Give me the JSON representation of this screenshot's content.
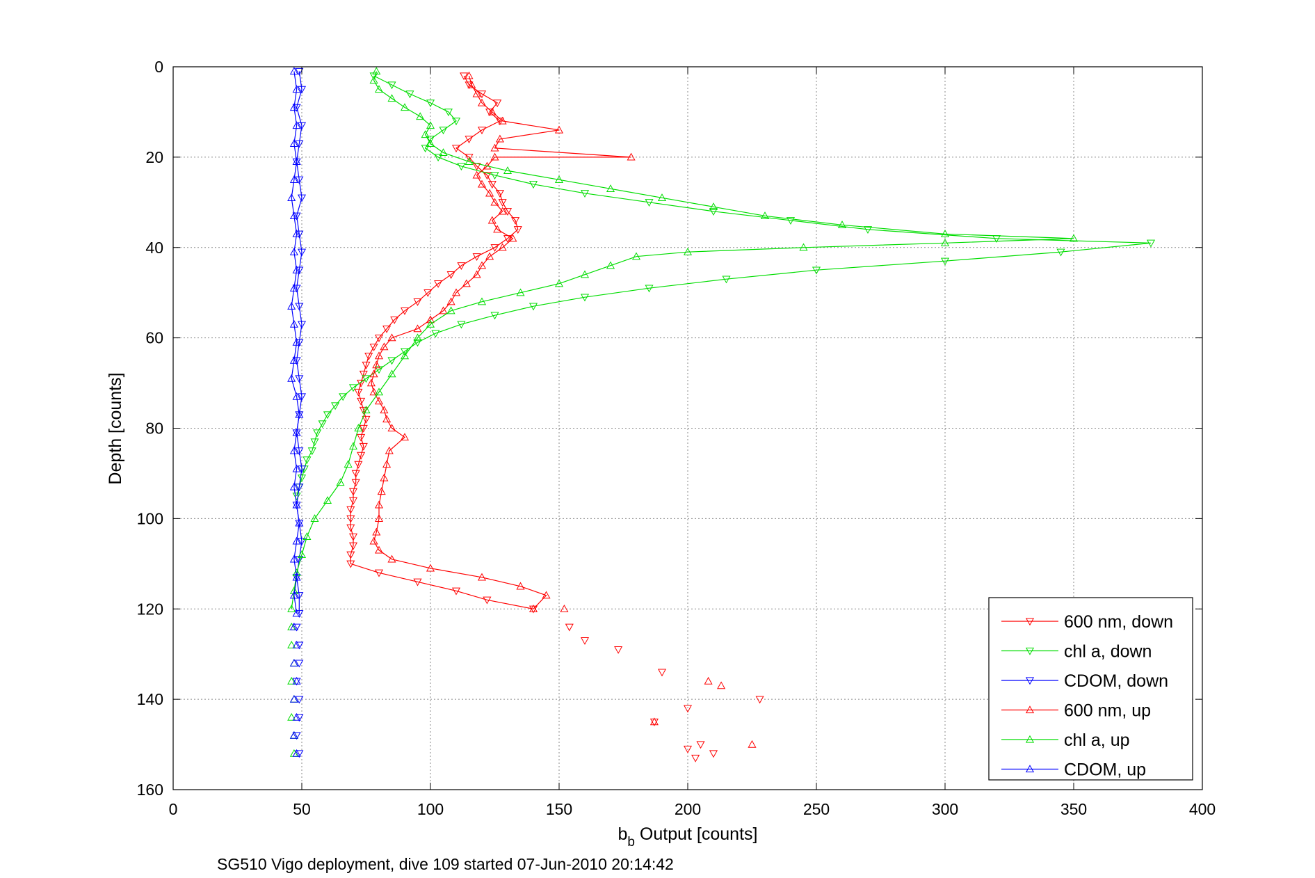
{
  "caption": "SG510 Vigo deployment, dive 109 started 07-Jun-2010 20:14:42",
  "chart_data": {
    "type": "line",
    "xlabel_main": "b",
    "xlabel_sub": "b",
    "xlabel_rest": " Output [counts]",
    "ylabel": "Depth [counts]",
    "xlim": [
      0,
      400
    ],
    "ylim": [
      0,
      160
    ],
    "y_reversed": true,
    "grid": true,
    "legend_position": "bottom-right",
    "xticks": [
      "0",
      "50",
      "100",
      "150",
      "200",
      "250",
      "300",
      "350",
      "400"
    ],
    "yticks": [
      "0",
      "20",
      "40",
      "60",
      "80",
      "100",
      "120",
      "140",
      "160"
    ],
    "series": [
      {
        "name": "600 nm, down",
        "color": "#ff0000",
        "marker": "triangle-down",
        "line": true,
        "points": [
          [
            113,
            2
          ],
          [
            115,
            4
          ],
          [
            120,
            6
          ],
          [
            126,
            8
          ],
          [
            123,
            10
          ],
          [
            127,
            12
          ],
          [
            120,
            14
          ],
          [
            115,
            16
          ],
          [
            110,
            18
          ],
          [
            115,
            20
          ],
          [
            118,
            22
          ],
          [
            122,
            24
          ],
          [
            124,
            26
          ],
          [
            127,
            28
          ],
          [
            128,
            30
          ],
          [
            130,
            32
          ],
          [
            133,
            34
          ],
          [
            134,
            36
          ],
          [
            130,
            38
          ],
          [
            125,
            40
          ],
          [
            118,
            42
          ],
          [
            112,
            44
          ],
          [
            108,
            46
          ],
          [
            103,
            48
          ],
          [
            99,
            50
          ],
          [
            95,
            52
          ],
          [
            90,
            54
          ],
          [
            86,
            56
          ],
          [
            83,
            58
          ],
          [
            80,
            60
          ],
          [
            78,
            62
          ],
          [
            76,
            64
          ],
          [
            75,
            66
          ],
          [
            74,
            68
          ],
          [
            73,
            70
          ],
          [
            72,
            72
          ],
          [
            73,
            74
          ],
          [
            74,
            76
          ],
          [
            75,
            78
          ],
          [
            74,
            80
          ],
          [
            73,
            82
          ],
          [
            74,
            84
          ],
          [
            73,
            86
          ],
          [
            72,
            88
          ],
          [
            71,
            90
          ],
          [
            71,
            92
          ],
          [
            70,
            94
          ],
          [
            70,
            96
          ],
          [
            69,
            98
          ],
          [
            69,
            100
          ],
          [
            69,
            102
          ],
          [
            70,
            104
          ],
          [
            70,
            106
          ],
          [
            69,
            108
          ],
          [
            69,
            110
          ],
          [
            80,
            112
          ],
          [
            95,
            114
          ],
          [
            110,
            116
          ],
          [
            122,
            118
          ],
          [
            140,
            120
          ]
        ],
        "scatter": [
          [
            154,
            124
          ],
          [
            160,
            127
          ],
          [
            173,
            129
          ],
          [
            190,
            134
          ],
          [
            228,
            140
          ],
          [
            200,
            142
          ],
          [
            187,
            145
          ],
          [
            205,
            150
          ],
          [
            200,
            151
          ],
          [
            210,
            152
          ],
          [
            203,
            153
          ]
        ]
      },
      {
        "name": "chl a, down",
        "color": "#00dd00",
        "marker": "triangle-down",
        "line": true,
        "points": [
          [
            78,
            2
          ],
          [
            85,
            4
          ],
          [
            92,
            6
          ],
          [
            100,
            8
          ],
          [
            107,
            10
          ],
          [
            110,
            12
          ],
          [
            105,
            14
          ],
          [
            100,
            16
          ],
          [
            98,
            18
          ],
          [
            103,
            20
          ],
          [
            112,
            22
          ],
          [
            125,
            24
          ],
          [
            140,
            26
          ],
          [
            160,
            28
          ],
          [
            185,
            30
          ],
          [
            210,
            32
          ],
          [
            240,
            34
          ],
          [
            270,
            36
          ],
          [
            320,
            38
          ],
          [
            380,
            39
          ],
          [
            345,
            41
          ],
          [
            300,
            43
          ],
          [
            250,
            45
          ],
          [
            215,
            47
          ],
          [
            185,
            49
          ],
          [
            160,
            51
          ],
          [
            140,
            53
          ],
          [
            125,
            55
          ],
          [
            112,
            57
          ],
          [
            102,
            59
          ],
          [
            95,
            61
          ],
          [
            90,
            63
          ],
          [
            85,
            65
          ],
          [
            80,
            67
          ],
          [
            75,
            69
          ],
          [
            70,
            71
          ],
          [
            66,
            73
          ],
          [
            63,
            75
          ],
          [
            60,
            77
          ],
          [
            58,
            79
          ],
          [
            56,
            81
          ],
          [
            55,
            83
          ],
          [
            54,
            85
          ],
          [
            52,
            87
          ],
          [
            51,
            89
          ],
          [
            50,
            91
          ],
          [
            49,
            93
          ],
          [
            48,
            95
          ]
        ],
        "scatter": []
      },
      {
        "name": "CDOM, down",
        "color": "#0000ff",
        "marker": "triangle-down",
        "line": true,
        "points": [
          [
            49,
            1
          ],
          [
            50,
            5
          ],
          [
            48,
            9
          ],
          [
            50,
            13
          ],
          [
            49,
            17
          ],
          [
            48,
            21
          ],
          [
            49,
            25
          ],
          [
            50,
            29
          ],
          [
            48,
            33
          ],
          [
            49,
            37
          ],
          [
            50,
            41
          ],
          [
            49,
            45
          ],
          [
            48,
            49
          ],
          [
            49,
            53
          ],
          [
            50,
            57
          ],
          [
            49,
            61
          ],
          [
            48,
            65
          ],
          [
            49,
            69
          ],
          [
            50,
            73
          ],
          [
            49,
            77
          ],
          [
            48,
            81
          ],
          [
            49,
            85
          ],
          [
            50,
            89
          ],
          [
            49,
            93
          ],
          [
            48,
            97
          ],
          [
            49,
            101
          ],
          [
            50,
            105
          ],
          [
            49,
            109
          ],
          [
            48,
            113
          ],
          [
            49,
            117
          ],
          [
            49,
            121
          ]
        ],
        "scatter": [
          [
            48,
            124
          ],
          [
            49,
            128
          ],
          [
            49,
            132
          ],
          [
            48,
            136
          ],
          [
            49,
            140
          ],
          [
            49,
            144
          ],
          [
            48,
            148
          ],
          [
            49,
            152
          ]
        ]
      },
      {
        "name": "600 nm, up",
        "color": "#ff0000",
        "marker": "triangle-up",
        "line": true,
        "points": [
          [
            140,
            120
          ],
          [
            145,
            117
          ],
          [
            135,
            115
          ],
          [
            120,
            113
          ],
          [
            100,
            111
          ],
          [
            85,
            109
          ],
          [
            80,
            107
          ],
          [
            78,
            105
          ],
          [
            79,
            103
          ],
          [
            80,
            100
          ],
          [
            80,
            97
          ],
          [
            81,
            94
          ],
          [
            82,
            91
          ],
          [
            83,
            88
          ],
          [
            84,
            85
          ],
          [
            90,
            82
          ],
          [
            85,
            80
          ],
          [
            83,
            78
          ],
          [
            82,
            76
          ],
          [
            80,
            74
          ],
          [
            78,
            72
          ],
          [
            77,
            70
          ],
          [
            78,
            68
          ],
          [
            79,
            66
          ],
          [
            80,
            64
          ],
          [
            82,
            62
          ],
          [
            85,
            60
          ],
          [
            95,
            58
          ],
          [
            100,
            56
          ],
          [
            105,
            54
          ],
          [
            108,
            52
          ],
          [
            110,
            50
          ],
          [
            114,
            48
          ],
          [
            118,
            46
          ],
          [
            120,
            44
          ],
          [
            123,
            42
          ],
          [
            128,
            40
          ],
          [
            132,
            38
          ],
          [
            126,
            36
          ],
          [
            124,
            34
          ],
          [
            128,
            32
          ],
          [
            125,
            30
          ],
          [
            123,
            28
          ],
          [
            120,
            26
          ],
          [
            118,
            24
          ],
          [
            122,
            22
          ],
          [
            125,
            20
          ],
          [
            178,
            20
          ],
          [
            125,
            18
          ],
          [
            127,
            16
          ],
          [
            150,
            14
          ],
          [
            128,
            12
          ],
          [
            124,
            10
          ],
          [
            120,
            8
          ],
          [
            118,
            6
          ],
          [
            116,
            4
          ],
          [
            115,
            2
          ]
        ],
        "scatter": [
          [
            152,
            120
          ],
          [
            208,
            136
          ],
          [
            213,
            137
          ],
          [
            225,
            150
          ],
          [
            187,
            145
          ]
        ]
      },
      {
        "name": "chl a, up",
        "color": "#00dd00",
        "marker": "triangle-up",
        "line": true,
        "points": [
          [
            46,
            120
          ],
          [
            47,
            116
          ],
          [
            48,
            112
          ],
          [
            50,
            108
          ],
          [
            52,
            104
          ],
          [
            55,
            100
          ],
          [
            60,
            96
          ],
          [
            65,
            92
          ],
          [
            68,
            88
          ],
          [
            70,
            84
          ],
          [
            72,
            80
          ],
          [
            75,
            76
          ],
          [
            80,
            72
          ],
          [
            85,
            68
          ],
          [
            90,
            64
          ],
          [
            95,
            60
          ],
          [
            100,
            57
          ],
          [
            108,
            54
          ],
          [
            120,
            52
          ],
          [
            135,
            50
          ],
          [
            150,
            48
          ],
          [
            160,
            46
          ],
          [
            170,
            44
          ],
          [
            180,
            42
          ],
          [
            200,
            41
          ],
          [
            245,
            40
          ],
          [
            300,
            39
          ],
          [
            350,
            38
          ],
          [
            300,
            37
          ],
          [
            260,
            35
          ],
          [
            230,
            33
          ],
          [
            210,
            31
          ],
          [
            190,
            29
          ],
          [
            170,
            27
          ],
          [
            150,
            25
          ],
          [
            130,
            23
          ],
          [
            115,
            21
          ],
          [
            105,
            19
          ],
          [
            100,
            17
          ],
          [
            98,
            15
          ],
          [
            100,
            13
          ],
          [
            96,
            11
          ],
          [
            90,
            9
          ],
          [
            85,
            7
          ],
          [
            80,
            5
          ],
          [
            78,
            3
          ],
          [
            79,
            1
          ]
        ],
        "scatter": [
          [
            46,
            124
          ],
          [
            46,
            128
          ],
          [
            47,
            132
          ],
          [
            46,
            136
          ],
          [
            47,
            140
          ],
          [
            46,
            144
          ],
          [
            47,
            148
          ],
          [
            47,
            152
          ]
        ]
      },
      {
        "name": "CDOM, up",
        "color": "#0000ff",
        "marker": "triangle-up",
        "line": true,
        "points": [
          [
            48,
            121
          ],
          [
            47,
            117
          ],
          [
            48,
            113
          ],
          [
            47,
            109
          ],
          [
            48,
            105
          ],
          [
            49,
            101
          ],
          [
            48,
            97
          ],
          [
            47,
            93
          ],
          [
            48,
            89
          ],
          [
            47,
            85
          ],
          [
            48,
            81
          ],
          [
            49,
            77
          ],
          [
            48,
            73
          ],
          [
            46,
            69
          ],
          [
            47,
            65
          ],
          [
            48,
            61
          ],
          [
            47,
            57
          ],
          [
            46,
            53
          ],
          [
            47,
            49
          ],
          [
            48,
            45
          ],
          [
            47,
            41
          ],
          [
            48,
            37
          ],
          [
            47,
            33
          ],
          [
            46,
            29
          ],
          [
            47,
            25
          ],
          [
            48,
            21
          ],
          [
            47,
            17
          ],
          [
            48,
            13
          ],
          [
            47,
            9
          ],
          [
            48,
            5
          ],
          [
            47,
            1
          ]
        ],
        "scatter": [
          [
            47,
            124
          ],
          [
            48,
            128
          ],
          [
            47,
            132
          ],
          [
            48,
            136
          ],
          [
            47,
            140
          ],
          [
            48,
            144
          ],
          [
            47,
            148
          ],
          [
            48,
            152
          ]
        ]
      }
    ]
  }
}
